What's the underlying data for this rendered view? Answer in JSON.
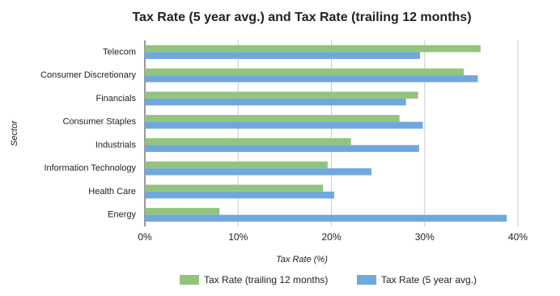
{
  "chart_data": {
    "type": "hbar",
    "title": "Tax Rate (5 year avg.) and Tax Rate (trailing 12 months)",
    "x_label": "Tax Rate (%)",
    "y_label": "Sector",
    "categories": [
      "Telecom",
      "Consumer Discretionary",
      "Financials",
      "Consumer Staples",
      "Industrials",
      "Information Technology",
      "Health Care",
      "Energy"
    ],
    "series": [
      {
        "name": "Tax Rate (trailing 12 months)",
        "color": "#93c47d",
        "values": [
          36.0,
          34.2,
          29.3,
          27.3,
          22.1,
          19.6,
          19.1,
          8.0
        ]
      },
      {
        "name": "Tax Rate (5 year avg.)",
        "color": "#6fa8dc",
        "values": [
          29.5,
          35.7,
          28.0,
          29.8,
          29.4,
          24.3,
          20.3,
          38.8
        ]
      }
    ],
    "xlim": [
      0,
      40
    ],
    "xticks": [
      {
        "value": 0,
        "label": "0%"
      },
      {
        "value": 10,
        "label": "10%"
      },
      {
        "value": 20,
        "label": "20%"
      },
      {
        "value": 30,
        "label": "30%"
      },
      {
        "value": 40,
        "label": "40%"
      }
    ],
    "grid": true,
    "legend": "bottom"
  }
}
